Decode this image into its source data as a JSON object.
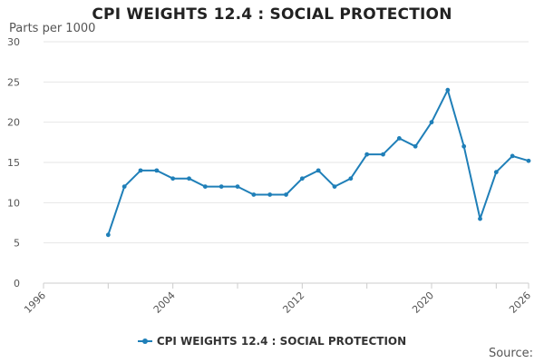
{
  "chart_data": {
    "type": "line",
    "title": "CPI WEIGHTS 12.4 : SOCIAL PROTECTION",
    "ylabel": "Parts per 1000",
    "xlabel": "",
    "xlim": [
      1996,
      2026
    ],
    "ylim": [
      0,
      30
    ],
    "x_ticks": [
      "1996",
      "2004",
      "2012",
      "2020",
      "2026"
    ],
    "y_ticks": [
      "0",
      "5",
      "10",
      "15",
      "20",
      "25",
      "30"
    ],
    "grid": true,
    "legend_position": "bottom",
    "series": [
      {
        "name": "CPI WEIGHTS 12.4 : SOCIAL PROTECTION",
        "color": "#1f7fb8",
        "x": [
          2000,
          2001,
          2002,
          2003,
          2004,
          2005,
          2006,
          2007,
          2008,
          2009,
          2010,
          2011,
          2012,
          2013,
          2014,
          2015,
          2016,
          2017,
          2018,
          2019,
          2020,
          2021,
          2022,
          2023,
          2024,
          2025,
          2026
        ],
        "values": [
          6,
          12,
          14,
          14,
          13,
          13,
          12,
          12,
          12,
          11,
          11,
          11,
          13,
          14,
          12,
          13,
          16,
          16,
          18,
          17,
          20,
          24,
          17,
          8,
          13.8,
          15.8,
          15.2
        ]
      }
    ]
  },
  "footer": {
    "source_label": "Source:"
  }
}
